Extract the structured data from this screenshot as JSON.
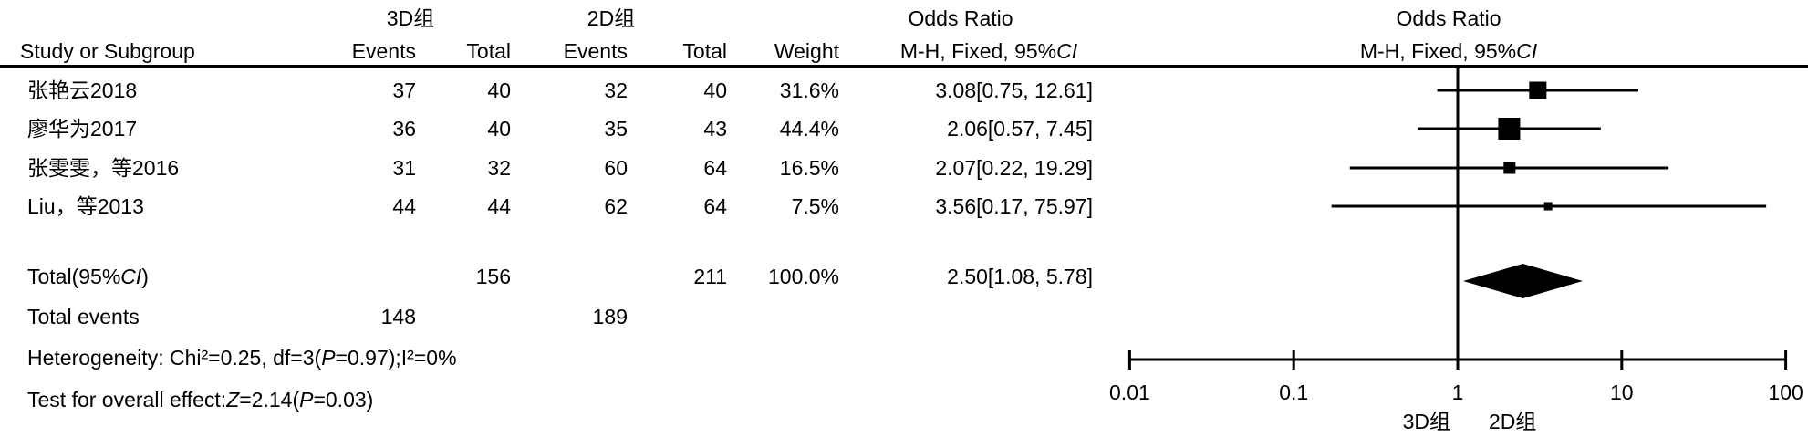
{
  "table": {
    "header": {
      "group1": "3D组",
      "group2": "2D组",
      "study": "Study or Subgroup",
      "events": "Events",
      "total": "Total",
      "weight": "Weight",
      "or_title": "Odds Ratio",
      "or_sub_prefix": "M-H, Fixed, 95%",
      "ci_italic": "CI"
    },
    "rows": [
      {
        "study": "张艳云2018",
        "e1": "37",
        "t1": "40",
        "e2": "32",
        "t2": "40",
        "weight": "31.6%",
        "or": "3.08[0.75, 12.61]"
      },
      {
        "study": "廖华为2017",
        "e1": "36",
        "t1": "40",
        "e2": "35",
        "t2": "43",
        "weight": "44.4%",
        "or": "2.06[0.57, 7.45]"
      },
      {
        "study": "张雯雯，等2016",
        "e1": "31",
        "t1": "32",
        "e2": "60",
        "t2": "64",
        "weight": "16.5%",
        "or": "2.07[0.22, 19.29]"
      },
      {
        "study": "Liu，等2013",
        "e1": "44",
        "t1": "44",
        "e2": "62",
        "t2": "64",
        "weight": "7.5%",
        "or": "3.56[0.17, 75.97]"
      }
    ],
    "total": {
      "label_prefix": "Total(95%",
      "ci": "CI",
      "label_suffix": ")",
      "t1": "156",
      "t2": "211",
      "weight": "100.0%",
      "or": "2.50[1.08, 5.78]"
    },
    "total_events": {
      "label": "Total events",
      "e1": "148",
      "e2": "189"
    },
    "heterogeneity": {
      "a": "Heterogeneity: Chi²=0.25, df=3(",
      "p": "P",
      "b": "=0.97);I²=0%"
    },
    "overall": {
      "a": "Test for overall effect:",
      "z": "Z",
      "b": "=2.14(",
      "p": "P",
      "c": "=0.03)"
    }
  },
  "chart_data": {
    "type": "forest",
    "title": "Odds Ratio",
    "method": "M-H, Fixed, 95%CI",
    "x_scale": "log10",
    "xlim": [
      0.01,
      100
    ],
    "x_ticks": [
      0.01,
      0.1,
      1,
      10,
      100
    ],
    "x_tick_labels": [
      "0.01",
      "0.1",
      "1",
      "10",
      "100"
    ],
    "favours_left": "3D组",
    "favours_right": "2D组",
    "grid": false,
    "studies": [
      {
        "name": "张艳云2018",
        "events_3d": 37,
        "total_3d": 40,
        "events_2d": 32,
        "total_2d": 40,
        "weight_pct": 31.6,
        "or": 3.08,
        "ci_low": 0.75,
        "ci_high": 12.61
      },
      {
        "name": "廖华为2017",
        "events_3d": 36,
        "total_3d": 40,
        "events_2d": 35,
        "total_2d": 43,
        "weight_pct": 44.4,
        "or": 2.06,
        "ci_low": 0.57,
        "ci_high": 7.45
      },
      {
        "name": "张雯雯，等2016",
        "events_3d": 31,
        "total_3d": 32,
        "events_2d": 60,
        "total_2d": 64,
        "weight_pct": 16.5,
        "or": 2.07,
        "ci_low": 0.22,
        "ci_high": 19.29
      },
      {
        "name": "Liu，等2013",
        "events_3d": 44,
        "total_3d": 44,
        "events_2d": 62,
        "total_2d": 64,
        "weight_pct": 7.5,
        "or": 3.56,
        "ci_low": 0.17,
        "ci_high": 75.97
      }
    ],
    "total": {
      "or": 2.5,
      "ci_low": 1.08,
      "ci_high": 5.78,
      "total_3d": 156,
      "total_2d": 211,
      "events_3d": 148,
      "events_2d": 189,
      "weight_pct": 100.0
    },
    "heterogeneity_text": "Chi²=0.25, df=3(P=0.97);I²=0%",
    "overall_effect_text": "Z=2.14(P=0.03)",
    "marker_color": "#000000",
    "line_color": "#000000"
  }
}
